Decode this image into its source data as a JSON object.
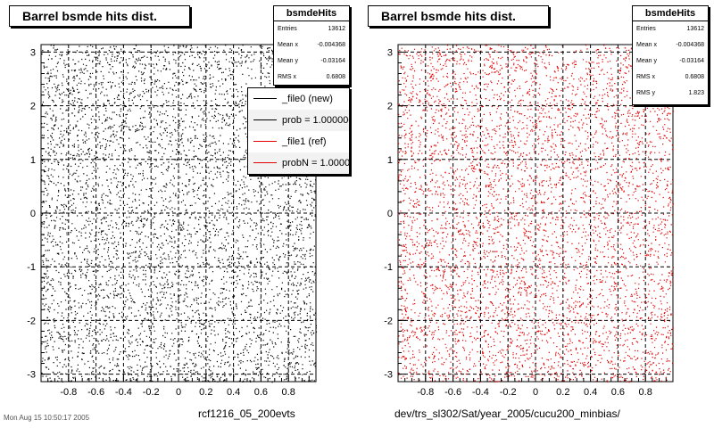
{
  "colors": {
    "file0": "#000000",
    "file1": "#e00000"
  },
  "footer": "Mon Aug 15 10:50:17 2005",
  "panels": [
    {
      "title": "Barrel bsmde hits dist.",
      "stats": {
        "name": "bsmdeHits",
        "rows": [
          {
            "label": "Entries",
            "value": "13612"
          },
          {
            "label": "Mean x",
            "value": "-0.004368"
          },
          {
            "label": "Mean y",
            "value": "-0.03164"
          },
          {
            "label": "RMS x",
            "value": "0.6808"
          }
        ]
      },
      "xtitle": "rcf1216_05_200evts"
    },
    {
      "title": "Barrel bsmde hits dist.",
      "stats": {
        "name": "bsmdeHits",
        "rows": [
          {
            "label": "Entries",
            "value": "13612"
          },
          {
            "label": "Mean x",
            "value": "-0.004368"
          },
          {
            "label": "Mean y",
            "value": "-0.03164"
          },
          {
            "label": "RMS x",
            "value": "0.6808"
          },
          {
            "label": "RMS y",
            "value": "1.823"
          }
        ]
      },
      "xtitle": "dev/trs_sl302/Sat/year_2005/cucu200_minbias/"
    }
  ],
  "legend": [
    {
      "label": "_file0 (new)",
      "color": "#000000"
    },
    {
      "label": "prob = 1.000000",
      "color": "#000000"
    },
    {
      "label": "_file1 (ref)",
      "color": "#e00000"
    },
    {
      "label": "probN = 1.000000",
      "color": "#e00000"
    }
  ],
  "chart_data": [
    {
      "type": "scatter",
      "title": "Barrel bsmde hits dist.",
      "xlabel": "rcf1216_05_200evts",
      "ylabel": "",
      "xlim": [
        -1,
        1
      ],
      "ylim": [
        -3.14,
        3.14
      ],
      "xticks": [
        "-0.8",
        "-0.6",
        "-0.4",
        "-0.2",
        "0",
        "0.2",
        "0.4",
        "0.6",
        "0.8"
      ],
      "yticks": [
        "-3",
        "-2",
        "-1",
        "0",
        "1",
        "2",
        "3"
      ],
      "grid": true,
      "series": [
        {
          "name": "_file0 (new)",
          "color": "#000000",
          "distribution": "uniform",
          "entries": 13612
        }
      ]
    },
    {
      "type": "scatter",
      "title": "Barrel bsmde hits dist.",
      "xlabel": "dev/trs_sl302/Sat/year_2005/cucu200_minbias/",
      "ylabel": "",
      "xlim": [
        -1,
        1
      ],
      "ylim": [
        -3.14,
        3.14
      ],
      "xticks": [
        "-0.8",
        "-0.6",
        "-0.4",
        "-0.2",
        "0",
        "0.2",
        "0.4",
        "0.6",
        "0.8"
      ],
      "yticks": [
        "-3",
        "-2",
        "-1",
        "0",
        "1",
        "2",
        "3"
      ],
      "grid": true,
      "series": [
        {
          "name": "_file1 (ref)",
          "color": "#e00000",
          "distribution": "uniform",
          "entries": 13612
        }
      ]
    }
  ]
}
